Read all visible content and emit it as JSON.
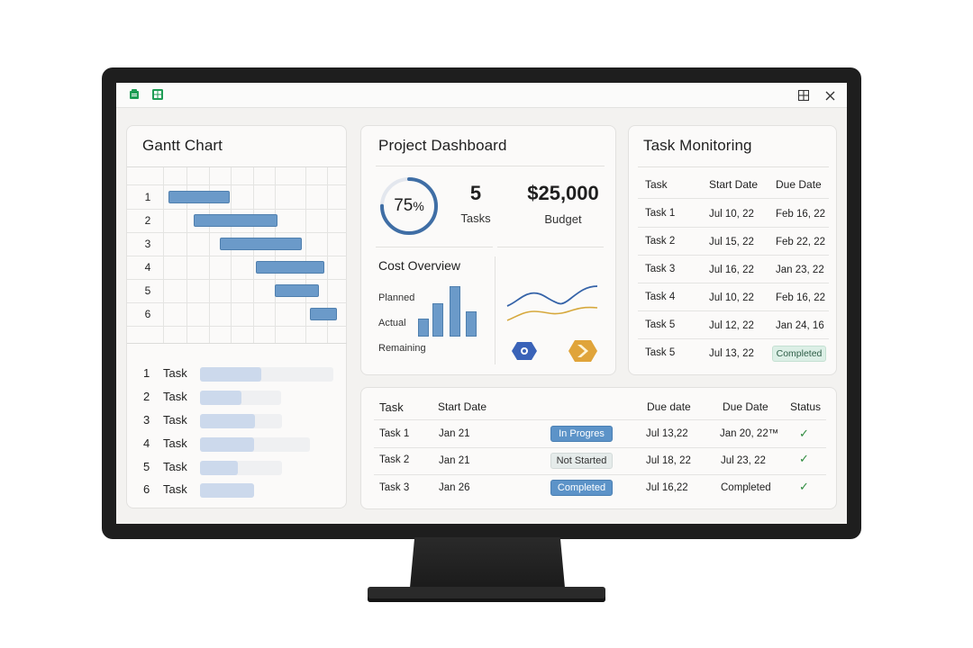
{
  "gantt": {
    "title": "Gantt Chart",
    "rows": [
      "1",
      "2",
      "3",
      "4",
      "5",
      "6"
    ],
    "task_list": [
      {
        "num": "1",
        "label": "Task",
        "progress": 0.46
      },
      {
        "num": "2",
        "label": "Task",
        "progress": 0.51
      },
      {
        "num": "3",
        "label": "Task",
        "progress": 0.67
      },
      {
        "num": "4",
        "label": "Task",
        "progress": 0.49
      },
      {
        "num": "5",
        "label": "Task",
        "progress": 0.46
      },
      {
        "num": "6",
        "label": "Task",
        "progress": 1.0
      }
    ]
  },
  "dashboard": {
    "title": "Project Dashboard",
    "progress_value": "75",
    "progress_unit": "%",
    "progress_fraction": 0.75,
    "tasks_count": "5",
    "tasks_label": "Tasks",
    "budget_value": "$25,000",
    "budget_label": "Budget",
    "cost_title": "Cost Overview",
    "cost_labels": [
      "Planned",
      "Actual",
      "Remaining"
    ],
    "accent_color": "#3f6ea5",
    "line_colors": [
      "#3563a8",
      "#d6a83c"
    ]
  },
  "monitoring": {
    "title": "Task Monitoring",
    "headers": [
      "Task",
      "Start Date",
      "Due Date"
    ],
    "rows": [
      {
        "task": "Task 1",
        "start": "Jul 10, 22",
        "due": "Feb 16, 22"
      },
      {
        "task": "Task 2",
        "start": "Jul 15, 22",
        "due": "Feb 22, 22"
      },
      {
        "task": "Task 3",
        "start": "Jul 16, 22",
        "due": "Jan 23, 22"
      },
      {
        "task": "Task 4",
        "start": "Jul 10, 22",
        "due": "Feb 16, 22"
      },
      {
        "task": "Task 5",
        "start": "Jul 12, 22",
        "due": "Jan 24, 16"
      },
      {
        "task": "Task 5",
        "start": "Jul 13, 22",
        "due": "Completed"
      }
    ]
  },
  "status_table": {
    "headers": [
      "Task",
      "Start Date",
      "Due date",
      "Due Date",
      "Status"
    ],
    "rows": [
      {
        "task": "Task 1",
        "start": "Jan 21",
        "badge": "In Progres",
        "due1": "Jul 13,22",
        "due2": "Jan 20, 22™"
      },
      {
        "task": "Task 2",
        "start": "Jan 21",
        "badge": "Not Started",
        "due1": "Jul 18, 22",
        "due2": "Jul 23, 22"
      },
      {
        "task": "Task 3",
        "start": "Jan 26",
        "badge": "Completed",
        "due1": "Jul 16,22",
        "due2": "Completed"
      }
    ]
  },
  "colors": {
    "bar_blue": "#6b9ac9",
    "check_green": "#2e8b3e",
    "app_green": "#1f9d55"
  },
  "icons": [
    "app-icon",
    "sheets-icon",
    "maximize-icon",
    "close-icon",
    "hexagon-badge-icon",
    "chevron-badge-icon",
    "check-icon"
  ]
}
